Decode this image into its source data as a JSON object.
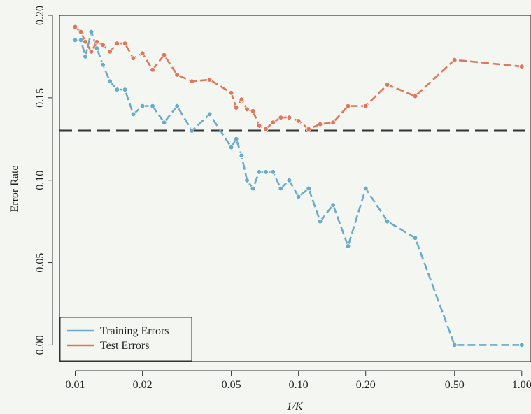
{
  "chart_data": {
    "type": "line",
    "xlabel": "1/K",
    "ylabel": "Error Rate",
    "x_scale": "log",
    "xlim": [
      0.0085,
      1.1
    ],
    "ylim": [
      -0.01,
      0.2
    ],
    "x_ticks": [
      {
        "value": 0.01,
        "label": "0.01"
      },
      {
        "value": 0.02,
        "label": "0.02"
      },
      {
        "value": 0.05,
        "label": "0.05"
      },
      {
        "value": 0.1,
        "label": "0.10"
      },
      {
        "value": 0.2,
        "label": "0.20"
      },
      {
        "value": 0.5,
        "label": "0.50"
      },
      {
        "value": 1.0,
        "label": "1.00"
      }
    ],
    "y_ticks": [
      {
        "value": 0.0,
        "label": "0.00"
      },
      {
        "value": 0.05,
        "label": "0.05"
      },
      {
        "value": 0.1,
        "label": "0.10"
      },
      {
        "value": 0.15,
        "label": "0.15"
      },
      {
        "value": 0.2,
        "label": "0.20"
      }
    ],
    "grid": false,
    "legend_position": "bottom-left",
    "reference_line": {
      "y": 0.13,
      "style": "dashed",
      "color": "#333333"
    },
    "series": [
      {
        "name": "Training Errors",
        "color": "#6aabc6",
        "line_style": "dashed",
        "x": [
          0.01,
          0.0106,
          0.0111,
          0.0118,
          0.0125,
          0.0133,
          0.0143,
          0.0154,
          0.0167,
          0.0182,
          0.02,
          0.0222,
          0.025,
          0.0286,
          0.0333,
          0.04,
          0.05,
          0.0526,
          0.0556,
          0.0588,
          0.0625,
          0.0667,
          0.0714,
          0.0769,
          0.0833,
          0.0909,
          0.1,
          0.1111,
          0.125,
          0.1429,
          0.1667,
          0.2,
          0.25,
          0.3333,
          0.5,
          1.0
        ],
        "y": [
          0.185,
          0.185,
          0.175,
          0.19,
          0.18,
          0.17,
          0.16,
          0.155,
          0.155,
          0.14,
          0.145,
          0.145,
          0.135,
          0.145,
          0.13,
          0.14,
          0.12,
          0.125,
          0.115,
          0.1,
          0.095,
          0.105,
          0.105,
          0.105,
          0.095,
          0.1,
          0.09,
          0.095,
          0.075,
          0.085,
          0.06,
          0.095,
          0.075,
          0.065,
          0.0,
          0.0
        ]
      },
      {
        "name": "Test Errors",
        "color": "#e0775a",
        "line_style": "dashed",
        "x": [
          0.01,
          0.0106,
          0.0111,
          0.0118,
          0.0125,
          0.0133,
          0.0143,
          0.0154,
          0.0167,
          0.0182,
          0.02,
          0.0222,
          0.025,
          0.0286,
          0.0333,
          0.04,
          0.05,
          0.0526,
          0.0556,
          0.0588,
          0.0625,
          0.0667,
          0.0714,
          0.0769,
          0.0833,
          0.0909,
          0.1,
          0.1111,
          0.125,
          0.1429,
          0.1667,
          0.2,
          0.25,
          0.3333,
          0.5,
          1.0
        ],
        "y": [
          0.193,
          0.19,
          0.184,
          0.178,
          0.184,
          0.182,
          0.178,
          0.183,
          0.183,
          0.174,
          0.177,
          0.167,
          0.176,
          0.164,
          0.16,
          0.161,
          0.153,
          0.144,
          0.149,
          0.143,
          0.142,
          0.133,
          0.131,
          0.135,
          0.138,
          0.138,
          0.136,
          0.131,
          0.134,
          0.135,
          0.145,
          0.145,
          0.158,
          0.151,
          0.173,
          0.169
        ]
      }
    ]
  }
}
